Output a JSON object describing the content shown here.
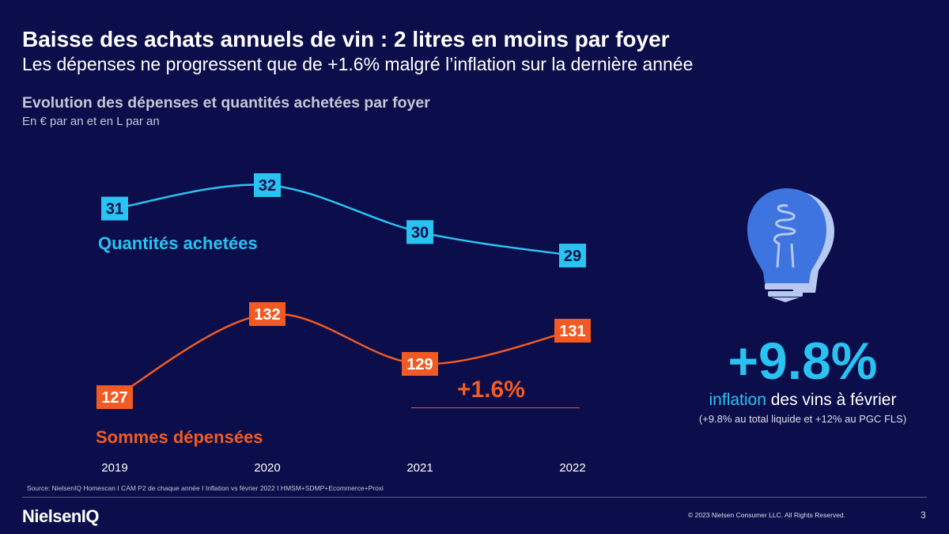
{
  "header": {
    "title": "Baisse des achats annuels de vin : 2 litres en moins par foyer",
    "subtitle": "Les dépenses ne progressent que de +1.6% malgré l’inflation sur la dernière année"
  },
  "section": {
    "title": "Evolution des dépenses et quantités achetées par foyer",
    "units": "En € par an et en L par an"
  },
  "chart_data": {
    "type": "line",
    "title": "Evolution des dépenses et quantités achetées par foyer",
    "subtitle": "En € par an et en L par an",
    "categories": [
      "2019",
      "2020",
      "2021",
      "2022"
    ],
    "series": [
      {
        "name": "Quantités achetées",
        "values": [
          31,
          32,
          30,
          29
        ],
        "color": "#29c3f2",
        "label_text_color": "#0b0e4a"
      },
      {
        "name": "Sommes dépensées",
        "values": [
          127,
          132,
          129,
          131
        ],
        "color": "#f15a22",
        "label_text_color": "#ffffff"
      }
    ],
    "annotation": {
      "text": "+1.6%",
      "between": [
        "2021",
        "2022"
      ],
      "series": "Sommes dépensées",
      "color": "#f15a22"
    },
    "grid": false,
    "legend": "inline labels"
  },
  "kpi": {
    "value": "+9.8%",
    "accent_text": "inflation",
    "rest_text": " des vins à février",
    "note": "(+9.8% au total liquide et +12% au PGC FLS)"
  },
  "footer": {
    "source": "Source: NielsenIQ Homescan I CAM P2 de chaque année I Inflation vs février 2022 I HMSM+SDMP+Ecommerce+Proxi",
    "brand": "NielsenIQ",
    "copyright": "© 2023 Nielsen Consumer LLC. All Rights Reserved.",
    "page": "3"
  },
  "icons": {
    "kpi_icon": "lightbulb-icon"
  },
  "colors": {
    "background": "#0b0e4a",
    "accent_blue": "#29c3f2",
    "accent_orange": "#f15a22",
    "bulb_blue": "#3d74e0",
    "bulb_light": "#b7c9f2"
  }
}
